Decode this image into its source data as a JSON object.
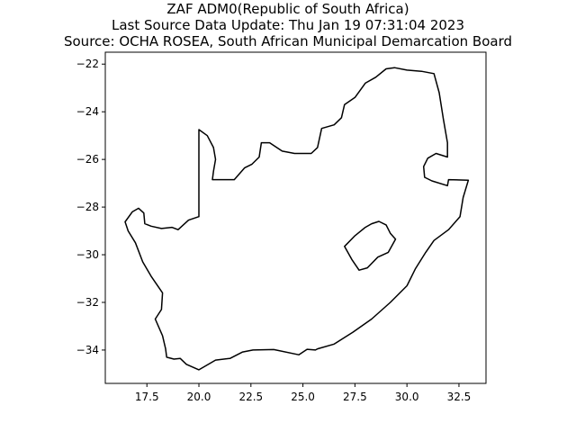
{
  "title": {
    "line1": "ZAF ADM0(Republic of South Africa)",
    "line2": "Last Source Data Update: Thu Jan 19 07:31:04 2023",
    "line3": "Source: OCHA ROSEA, South African Municipal Demarcation Board"
  },
  "chart_data": {
    "type": "map",
    "xlim": [
      15.5,
      33.8
    ],
    "ylim": [
      -35.4,
      -21.5
    ],
    "x_ticks": [
      17.5,
      20.0,
      22.5,
      25.0,
      27.5,
      30.0,
      32.5
    ],
    "x_tick_labels": [
      "17.5",
      "20.0",
      "22.5",
      "25.0",
      "27.5",
      "30.0",
      "32.5"
    ],
    "y_ticks": [
      -22,
      -24,
      -26,
      -28,
      -30,
      -32,
      -34
    ],
    "y_tick_labels": [
      "−22",
      "−24",
      "−26",
      "−28",
      "−30",
      "−32",
      "−34"
    ],
    "grid": false,
    "outline_color": "#000000",
    "country_boundary_lonlat": [
      [
        16.45,
        -28.62
      ],
      [
        16.8,
        -28.2
      ],
      [
        17.1,
        -28.05
      ],
      [
        17.35,
        -28.25
      ],
      [
        17.4,
        -28.7
      ],
      [
        17.7,
        -28.8
      ],
      [
        18.2,
        -28.9
      ],
      [
        18.7,
        -28.85
      ],
      [
        19.0,
        -28.95
      ],
      [
        19.5,
        -28.55
      ],
      [
        20.0,
        -28.4
      ],
      [
        20.0,
        -24.75
      ],
      [
        20.4,
        -25.0
      ],
      [
        20.7,
        -25.5
      ],
      [
        20.8,
        -26.0
      ],
      [
        20.7,
        -26.5
      ],
      [
        20.65,
        -26.85
      ],
      [
        21.3,
        -26.85
      ],
      [
        21.7,
        -26.85
      ],
      [
        22.2,
        -26.35
      ],
      [
        22.55,
        -26.2
      ],
      [
        22.9,
        -25.9
      ],
      [
        23.0,
        -25.3
      ],
      [
        23.4,
        -25.3
      ],
      [
        24.0,
        -25.65
      ],
      [
        24.6,
        -25.75
      ],
      [
        25.4,
        -25.75
      ],
      [
        25.7,
        -25.5
      ],
      [
        25.9,
        -24.7
      ],
      [
        26.5,
        -24.55
      ],
      [
        26.85,
        -24.25
      ],
      [
        27.0,
        -23.7
      ],
      [
        27.5,
        -23.4
      ],
      [
        28.0,
        -22.8
      ],
      [
        28.5,
        -22.55
      ],
      [
        29.0,
        -22.2
      ],
      [
        29.4,
        -22.15
      ],
      [
        30.0,
        -22.25
      ],
      [
        30.7,
        -22.3
      ],
      [
        31.3,
        -22.4
      ],
      [
        31.55,
        -23.2
      ],
      [
        31.75,
        -24.3
      ],
      [
        31.95,
        -25.3
      ],
      [
        31.95,
        -25.9
      ],
      [
        31.4,
        -25.75
      ],
      [
        31.0,
        -25.95
      ],
      [
        30.8,
        -26.3
      ],
      [
        30.85,
        -26.75
      ],
      [
        31.2,
        -26.9
      ],
      [
        31.95,
        -27.1
      ],
      [
        32.0,
        -26.85
      ],
      [
        32.95,
        -26.87
      ],
      [
        32.7,
        -27.6
      ],
      [
        32.55,
        -28.4
      ],
      [
        32.0,
        -28.95
      ],
      [
        31.3,
        -29.4
      ],
      [
        30.9,
        -29.9
      ],
      [
        30.4,
        -30.6
      ],
      [
        30.0,
        -31.3
      ],
      [
        29.2,
        -32.0
      ],
      [
        28.3,
        -32.7
      ],
      [
        27.4,
        -33.25
      ],
      [
        26.5,
        -33.75
      ],
      [
        25.7,
        -33.95
      ],
      [
        25.6,
        -34.0
      ],
      [
        25.2,
        -33.97
      ],
      [
        24.8,
        -34.2
      ],
      [
        23.6,
        -33.98
      ],
      [
        22.6,
        -34.0
      ],
      [
        22.1,
        -34.08
      ],
      [
        21.5,
        -34.35
      ],
      [
        20.8,
        -34.42
      ],
      [
        20.0,
        -34.83
      ],
      [
        19.4,
        -34.6
      ],
      [
        19.1,
        -34.35
      ],
      [
        18.8,
        -34.38
      ],
      [
        18.45,
        -34.3
      ],
      [
        18.4,
        -33.95
      ],
      [
        18.25,
        -33.4
      ],
      [
        17.9,
        -32.7
      ],
      [
        18.2,
        -32.3
      ],
      [
        18.25,
        -31.6
      ],
      [
        17.7,
        -30.9
      ],
      [
        17.3,
        -30.3
      ],
      [
        16.95,
        -29.5
      ],
      [
        16.6,
        -29.0
      ],
      [
        16.45,
        -28.62
      ]
    ],
    "lesotho_boundary_lonlat": [
      [
        27.0,
        -29.65
      ],
      [
        27.5,
        -29.2
      ],
      [
        28.0,
        -28.85
      ],
      [
        28.3,
        -28.7
      ],
      [
        28.65,
        -28.6
      ],
      [
        29.0,
        -28.75
      ],
      [
        29.2,
        -29.1
      ],
      [
        29.45,
        -29.35
      ],
      [
        29.1,
        -29.9
      ],
      [
        28.6,
        -30.1
      ],
      [
        28.1,
        -30.55
      ],
      [
        27.7,
        -30.65
      ],
      [
        27.35,
        -30.2
      ],
      [
        27.0,
        -29.65
      ]
    ]
  }
}
